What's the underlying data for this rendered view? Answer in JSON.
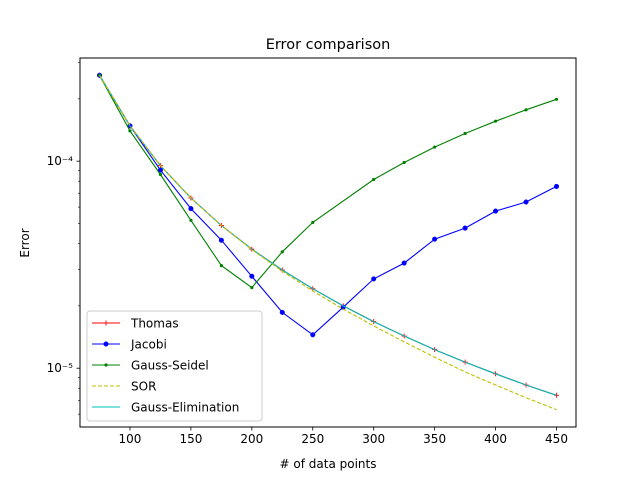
{
  "chart_data": {
    "type": "line",
    "title": "Error comparison",
    "xlabel": "# of data points",
    "ylabel": "Error",
    "xlim": [
      59,
      466
    ],
    "ylim": [
      5.2e-06,
      0.000315
    ],
    "yscale": "log",
    "x_ticks": [
      100,
      150,
      200,
      250,
      300,
      350,
      400,
      450
    ],
    "x_tick_labels": [
      "100",
      "150",
      "200",
      "250",
      "300",
      "350",
      "400",
      "450"
    ],
    "y_major_ticks": [
      1e-05,
      0.0001
    ],
    "y_tick_labels": [
      "10⁻⁵",
      "10⁻⁴"
    ],
    "y_minor_ticks": [
      6e-06,
      7e-06,
      8e-06,
      9e-06,
      2e-05,
      3e-05,
      4e-05,
      5e-05,
      6e-05,
      7e-05,
      8e-05,
      9e-05,
      0.0002,
      0.0003
    ],
    "grid": false,
    "legend_position": "lower-left",
    "series": [
      {
        "name": "Thomas",
        "color": "#ff0000",
        "linestyle": "solid",
        "marker": "plus",
        "x": [
          75,
          100,
          125,
          150,
          175,
          200,
          225,
          250,
          275,
          300,
          325,
          350,
          375,
          400,
          425,
          450
        ],
        "y": [
          0.00026,
          0.000148,
          9.52e-05,
          6.64e-05,
          4.89e-05,
          3.76e-05,
          2.98e-05,
          2.42e-05,
          2e-05,
          1.68e-05,
          1.43e-05,
          1.23e-05,
          1.07e-05,
          9.4e-06,
          8.3e-06,
          7.4e-06
        ]
      },
      {
        "name": "Jacobi",
        "color": "#0000ff",
        "linestyle": "solid",
        "marker": "circle",
        "x": [
          75,
          100,
          125,
          150,
          175,
          200,
          225,
          250,
          275,
          300,
          325,
          350,
          375,
          400,
          425,
          450
        ],
        "y": [
          0.00026,
          0.000148,
          9.05e-05,
          5.9e-05,
          4.15e-05,
          2.78e-05,
          1.86e-05,
          1.45e-05,
          1.97e-05,
          2.7e-05,
          3.22e-05,
          4.2e-05,
          4.75e-05,
          5.74e-05,
          6.35e-05,
          7.55e-05
        ]
      },
      {
        "name": "Gauss-Seidel",
        "color": "#008000",
        "linestyle": "solid",
        "marker": "dot",
        "x": [
          75,
          100,
          125,
          150,
          175,
          200,
          225,
          250,
          300,
          325,
          350,
          375,
          400,
          425,
          450
        ],
        "y": [
          0.00026,
          0.00014,
          8.62e-05,
          5.18e-05,
          3.13e-05,
          2.45e-05,
          3.65e-05,
          5.06e-05,
          8.16e-05,
          9.85e-05,
          0.000117,
          0.000136,
          0.000156,
          0.000177,
          0.000199
        ]
      },
      {
        "name": "SOR",
        "color": "#bfbf00",
        "linestyle": "dashed",
        "marker": "none",
        "x": [
          75,
          100,
          125,
          150,
          175,
          200,
          225,
          250,
          275,
          300,
          325,
          350,
          375,
          400,
          425,
          450
        ],
        "y": [
          0.00026,
          0.000148,
          9.52e-05,
          6.64e-05,
          4.89e-05,
          3.74e-05,
          2.94e-05,
          2.36e-05,
          1.93e-05,
          1.6e-05,
          1.34e-05,
          1.13e-05,
          9.6e-06,
          8.3e-06,
          7.2e-06,
          6.3e-06
        ]
      },
      {
        "name": "Gauss-Elimination",
        "color": "#00bfbf",
        "linestyle": "solid",
        "marker": "none",
        "x": [
          75,
          100,
          125,
          150,
          175,
          200,
          225,
          250,
          275,
          300,
          325,
          350,
          375,
          400,
          425,
          450
        ],
        "y": [
          0.00026,
          0.000148,
          9.52e-05,
          6.64e-05,
          4.89e-05,
          3.76e-05,
          2.98e-05,
          2.42e-05,
          2e-05,
          1.68e-05,
          1.43e-05,
          1.23e-05,
          1.07e-05,
          9.4e-06,
          8.3e-06,
          7.4e-06
        ]
      }
    ]
  }
}
